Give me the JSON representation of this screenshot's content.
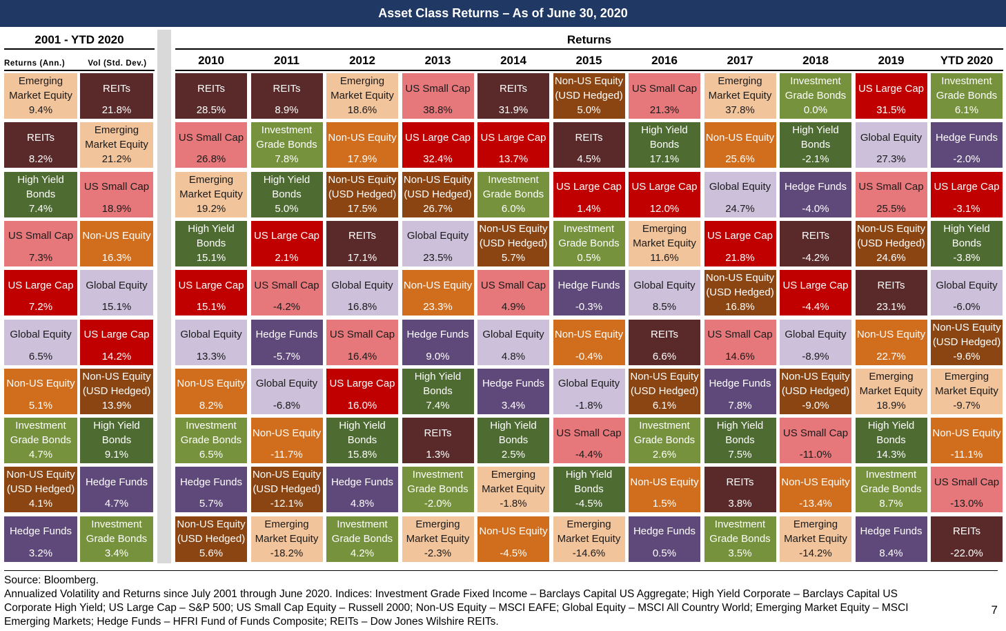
{
  "title": "Asset Class Returns – As of June 30, 2020",
  "left_panel": {
    "period": "2001 - YTD 2020",
    "col_returns": "Returns (Ann.)",
    "col_vol": "Vol (Std. Dev.)"
  },
  "returns_header": "Returns",
  "colors": {
    "Emerging Market Equity": "#f2c49c",
    "REITs": "#5a2a2a",
    "High Yield Bonds": "#4e6b32",
    "US Small Cap": "#e6777a",
    "US Large Cap": "#c00000",
    "Global Equity": "#ccc0da",
    "Non-US Equity": "#d06e1e",
    "Investment Grade Bonds": "#76923c",
    "Non-US Equity (USD Hedged)": "#8b4513",
    "Hedge Funds": "#5f497a"
  },
  "chart_data": {
    "type": "table",
    "annualized_returns": [
      {
        "asset": "Emerging Market Equity",
        "value": "9.4%"
      },
      {
        "asset": "REITs",
        "value": "8.2%"
      },
      {
        "asset": "High Yield Bonds",
        "value": "7.4%"
      },
      {
        "asset": "US Small Cap",
        "value": "7.3%"
      },
      {
        "asset": "US Large Cap",
        "value": "7.2%"
      },
      {
        "asset": "Global Equity",
        "value": "6.5%"
      },
      {
        "asset": "Non-US Equity",
        "value": "5.1%"
      },
      {
        "asset": "Investment Grade Bonds",
        "value": "4.7%"
      },
      {
        "asset": "Non-US Equity (USD Hedged)",
        "value": "4.1%"
      },
      {
        "asset": "Hedge Funds",
        "value": "3.2%"
      }
    ],
    "volatility": [
      {
        "asset": "REITs",
        "value": "21.8%"
      },
      {
        "asset": "Emerging Market Equity",
        "value": "21.2%"
      },
      {
        "asset": "US Small Cap",
        "value": "18.9%"
      },
      {
        "asset": "Non-US Equity",
        "value": "16.3%"
      },
      {
        "asset": "Global Equity",
        "value": "15.1%"
      },
      {
        "asset": "US Large Cap",
        "value": "14.2%"
      },
      {
        "asset": "Non-US Equity (USD Hedged)",
        "value": "13.9%"
      },
      {
        "asset": "High Yield Bonds",
        "value": "9.1%"
      },
      {
        "asset": "Hedge Funds",
        "value": "4.7%"
      },
      {
        "asset": "Investment Grade Bonds",
        "value": "3.4%"
      }
    ],
    "years": [
      {
        "year": "2010",
        "cells": [
          {
            "asset": "REITs",
            "value": "28.5%"
          },
          {
            "asset": "US Small Cap",
            "value": "26.8%"
          },
          {
            "asset": "Emerging Market Equity",
            "value": "19.2%"
          },
          {
            "asset": "High Yield Bonds",
            "value": "15.1%"
          },
          {
            "asset": "US Large Cap",
            "value": "15.1%"
          },
          {
            "asset": "Global Equity",
            "value": "13.3%"
          },
          {
            "asset": "Non-US Equity",
            "value": "8.2%"
          },
          {
            "asset": "Investment Grade Bonds",
            "value": "6.5%"
          },
          {
            "asset": "Hedge Funds",
            "value": "5.7%"
          },
          {
            "asset": "Non-US Equity (USD Hedged)",
            "value": "5.6%"
          }
        ]
      },
      {
        "year": "2011",
        "cells": [
          {
            "asset": "REITs",
            "value": "8.9%"
          },
          {
            "asset": "Investment Grade Bonds",
            "value": "7.8%"
          },
          {
            "asset": "High Yield Bonds",
            "value": "5.0%"
          },
          {
            "asset": "US Large Cap",
            "value": "2.1%"
          },
          {
            "asset": "US Small Cap",
            "value": "-4.2%"
          },
          {
            "asset": "Hedge Funds",
            "value": "-5.7%"
          },
          {
            "asset": "Global Equity",
            "value": "-6.8%"
          },
          {
            "asset": "Non-US Equity",
            "value": "-11.7%"
          },
          {
            "asset": "Non-US Equity (USD Hedged)",
            "value": "-12.1%"
          },
          {
            "asset": "Emerging Market Equity",
            "value": "-18.2%"
          }
        ]
      },
      {
        "year": "2012",
        "cells": [
          {
            "asset": "Emerging Market Equity",
            "value": "18.6%"
          },
          {
            "asset": "Non-US Equity",
            "value": "17.9%"
          },
          {
            "asset": "Non-US Equity (USD Hedged)",
            "value": "17.5%"
          },
          {
            "asset": "REITs",
            "value": "17.1%"
          },
          {
            "asset": "Global Equity",
            "value": "16.8%"
          },
          {
            "asset": "US Small Cap",
            "value": "16.4%"
          },
          {
            "asset": "US Large Cap",
            "value": "16.0%"
          },
          {
            "asset": "High Yield Bonds",
            "value": "15.8%"
          },
          {
            "asset": "Hedge Funds",
            "value": "4.8%"
          },
          {
            "asset": "Investment Grade Bonds",
            "value": "4.2%"
          }
        ]
      },
      {
        "year": "2013",
        "cells": [
          {
            "asset": "US Small Cap",
            "value": "38.8%"
          },
          {
            "asset": "US Large Cap",
            "value": "32.4%"
          },
          {
            "asset": "Non-US Equity (USD Hedged)",
            "value": "26.7%"
          },
          {
            "asset": "Global Equity",
            "value": "23.5%"
          },
          {
            "asset": "Non-US Equity",
            "value": "23.3%"
          },
          {
            "asset": "Hedge Funds",
            "value": "9.0%"
          },
          {
            "asset": "High Yield Bonds",
            "value": "7.4%"
          },
          {
            "asset": "REITs",
            "value": "1.3%"
          },
          {
            "asset": "Investment Grade Bonds",
            "value": "-2.0%"
          },
          {
            "asset": "Emerging Market Equity",
            "value": "-2.3%"
          }
        ]
      },
      {
        "year": "2014",
        "cells": [
          {
            "asset": "REITs",
            "value": "31.9%"
          },
          {
            "asset": "US Large Cap",
            "value": "13.7%"
          },
          {
            "asset": "Investment Grade Bonds",
            "value": "6.0%"
          },
          {
            "asset": "Non-US Equity (USD Hedged)",
            "value": "5.7%"
          },
          {
            "asset": "US Small Cap",
            "value": "4.9%"
          },
          {
            "asset": "Global Equity",
            "value": "4.8%"
          },
          {
            "asset": "Hedge Funds",
            "value": "3.4%"
          },
          {
            "asset": "High Yield Bonds",
            "value": "2.5%"
          },
          {
            "asset": "Emerging Market Equity",
            "value": "-1.8%"
          },
          {
            "asset": "Non-US Equity",
            "value": "-4.5%"
          }
        ]
      },
      {
        "year": "2015",
        "cells": [
          {
            "asset": "Non-US Equity (USD Hedged)",
            "value": "5.0%"
          },
          {
            "asset": "REITs",
            "value": "4.5%"
          },
          {
            "asset": "US Large Cap",
            "value": "1.4%"
          },
          {
            "asset": "Investment Grade Bonds",
            "value": "0.5%"
          },
          {
            "asset": "Hedge Funds",
            "value": "-0.3%"
          },
          {
            "asset": "Non-US Equity",
            "value": "-0.4%"
          },
          {
            "asset": "Global Equity",
            "value": "-1.8%"
          },
          {
            "asset": "US Small Cap",
            "value": "-4.4%"
          },
          {
            "asset": "High Yield Bonds",
            "value": "-4.5%"
          },
          {
            "asset": "Emerging Market Equity",
            "value": "-14.6%"
          }
        ]
      },
      {
        "year": "2016",
        "cells": [
          {
            "asset": "US Small Cap",
            "value": "21.3%"
          },
          {
            "asset": "High Yield Bonds",
            "value": "17.1%"
          },
          {
            "asset": "US Large Cap",
            "value": "12.0%"
          },
          {
            "asset": "Emerging Market Equity",
            "value": "11.6%"
          },
          {
            "asset": "Global Equity",
            "value": "8.5%"
          },
          {
            "asset": "REITs",
            "value": "6.6%"
          },
          {
            "asset": "Non-US Equity (USD Hedged)",
            "value": "6.1%"
          },
          {
            "asset": "Investment Grade Bonds",
            "value": "2.6%"
          },
          {
            "asset": "Non-US Equity",
            "value": "1.5%"
          },
          {
            "asset": "Hedge Funds",
            "value": "0.5%"
          }
        ]
      },
      {
        "year": "2017",
        "cells": [
          {
            "asset": "Emerging Market Equity",
            "value": "37.8%"
          },
          {
            "asset": "Non-US Equity",
            "value": "25.6%"
          },
          {
            "asset": "Global Equity",
            "value": "24.7%"
          },
          {
            "asset": "US Large Cap",
            "value": "21.8%"
          },
          {
            "asset": "Non-US Equity (USD Hedged)",
            "value": "16.8%"
          },
          {
            "asset": "US Small Cap",
            "value": "14.6%"
          },
          {
            "asset": "Hedge Funds",
            "value": "7.8%"
          },
          {
            "asset": "High Yield Bonds",
            "value": "7.5%"
          },
          {
            "asset": "REITs",
            "value": "3.8%"
          },
          {
            "asset": "Investment Grade Bonds",
            "value": "3.5%"
          }
        ]
      },
      {
        "year": "2018",
        "cells": [
          {
            "asset": "Investment Grade Bonds",
            "value": "0.0%"
          },
          {
            "asset": "High Yield Bonds",
            "value": "-2.1%"
          },
          {
            "asset": "Hedge Funds",
            "value": "-4.0%"
          },
          {
            "asset": "REITs",
            "value": "-4.2%"
          },
          {
            "asset": "US Large Cap",
            "value": "-4.4%"
          },
          {
            "asset": "Global Equity",
            "value": "-8.9%"
          },
          {
            "asset": "Non-US Equity (USD Hedged)",
            "value": "-9.0%"
          },
          {
            "asset": "US Small Cap",
            "value": "-11.0%"
          },
          {
            "asset": "Non-US Equity",
            "value": "-13.4%"
          },
          {
            "asset": "Emerging Market Equity",
            "value": "-14.2%"
          }
        ]
      },
      {
        "year": "2019",
        "cells": [
          {
            "asset": "US Large Cap",
            "value": "31.5%"
          },
          {
            "asset": "Global Equity",
            "value": "27.3%"
          },
          {
            "asset": "US Small Cap",
            "value": "25.5%"
          },
          {
            "asset": "Non-US Equity (USD Hedged)",
            "value": "24.6%"
          },
          {
            "asset": "REITs",
            "value": "23.1%"
          },
          {
            "asset": "Non-US Equity",
            "value": "22.7%"
          },
          {
            "asset": "Emerging Market Equity",
            "value": "18.9%"
          },
          {
            "asset": "High Yield Bonds",
            "value": "14.3%"
          },
          {
            "asset": "Investment Grade Bonds",
            "value": "8.7%"
          },
          {
            "asset": "Hedge Funds",
            "value": "8.4%"
          }
        ]
      },
      {
        "year": "YTD 2020",
        "cells": [
          {
            "asset": "Investment Grade Bonds",
            "value": "6.1%"
          },
          {
            "asset": "Hedge Funds",
            "value": "-2.0%"
          },
          {
            "asset": "US Large Cap",
            "value": "-3.1%"
          },
          {
            "asset": "High Yield Bonds",
            "value": "-3.8%"
          },
          {
            "asset": "Global Equity",
            "value": "-6.0%"
          },
          {
            "asset": "Non-US Equity (USD Hedged)",
            "value": "-9.6%"
          },
          {
            "asset": "Emerging Market Equity",
            "value": "-9.7%"
          },
          {
            "asset": "Non-US Equity",
            "value": "-11.1%"
          },
          {
            "asset": "US Small Cap",
            "value": "-13.0%"
          },
          {
            "asset": "REITs",
            "value": "-22.0%"
          }
        ]
      }
    ]
  },
  "footnotes": {
    "source": "Source: Bloomberg.",
    "line1": "Annualized Volatility and Returns since July 2001 through June 2020. Indices: Investment Grade Fixed Income – Barclays Capital US Aggregate; High Yield Corporate – Barclays Capital US",
    "line2": "Corporate High Yield; US Large Cap – S&P 500; US Small Cap Equity – Russell 2000; Non-US Equity – MSCI EAFE; Global Equity – MSCI All Country World; Emerging Market Equity – MSCI",
    "line3": "Emerging Markets; Hedge Funds – HFRI Fund of Funds Composite; REITs – Dow Jones Wilshire REITs."
  },
  "page_number": "7"
}
